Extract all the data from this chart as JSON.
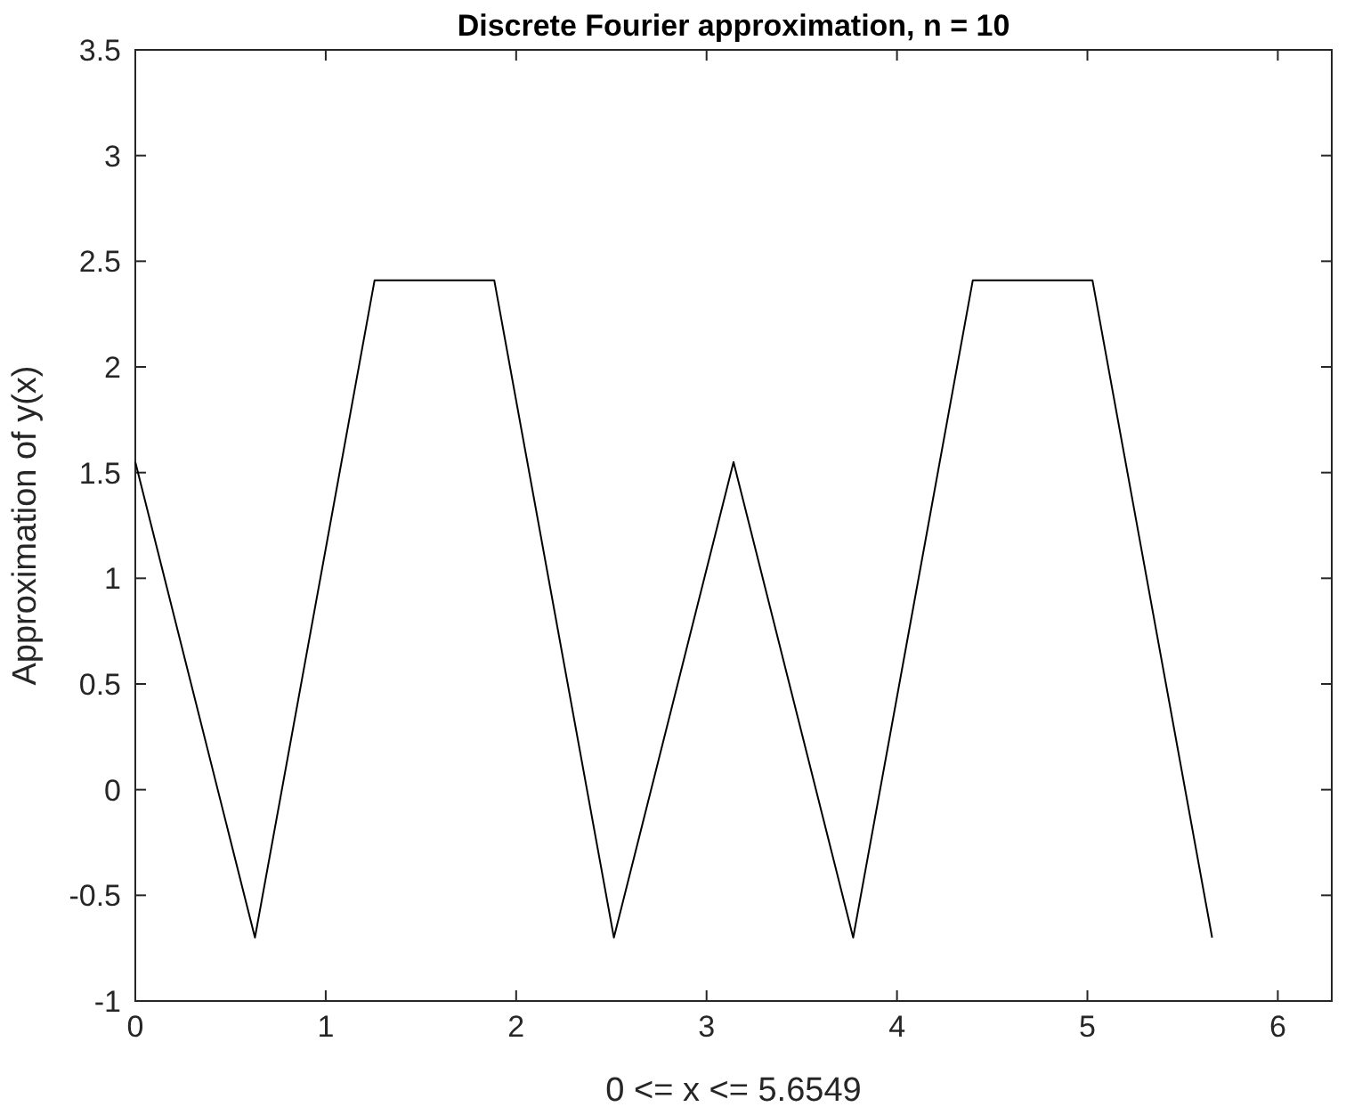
{
  "chart_data": {
    "type": "line",
    "title": "Discrete Fourier approximation, n = 10",
    "xlabel": "0 <= x <= 5.6549",
    "ylabel": "Approximation of y(x)",
    "x": [
      0,
      0.6283,
      1.2566,
      1.885,
      2.5133,
      3.1416,
      3.7699,
      4.3982,
      5.0265,
      5.6549
    ],
    "series": [
      {
        "color": "#000000",
        "values": [
          1.55,
          -0.7,
          2.41,
          2.41,
          -0.7,
          1.55,
          -0.7,
          2.41,
          2.41,
          -0.7
        ]
      }
    ],
    "xlim": [
      0,
      6.2832
    ],
    "xticks": [
      0,
      1,
      2,
      3,
      4,
      5,
      6
    ],
    "ylim": [
      -1,
      3.5
    ],
    "yticks": [
      -1,
      -0.5,
      0,
      0.5,
      1,
      1.5,
      2,
      2.5,
      3,
      3.5
    ],
    "marker": "none",
    "line_style": "solid"
  }
}
